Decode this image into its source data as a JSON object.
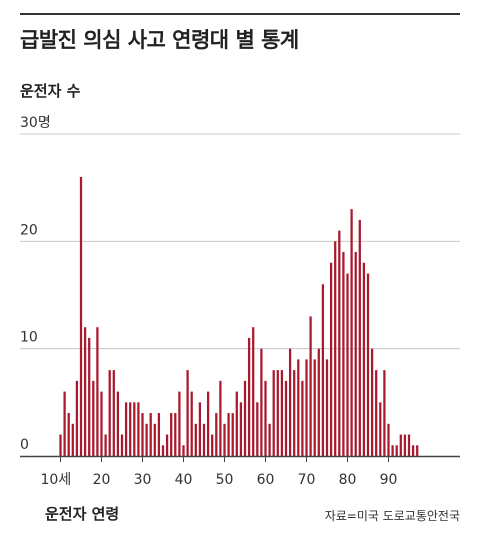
{
  "title": "급발진 의심 사고 연령대 별 통계",
  "ylabel": "운전자 수",
  "xlabel": "운전자 연령",
  "source": "자료=미국 도로교통안전국",
  "colors": {
    "bar": "#a8192e",
    "grid": "#c8c8c8",
    "axis": "#444444",
    "text": "#333333"
  },
  "chart_data": {
    "type": "bar",
    "title": "급발진 의심 사고 연령대 별 통계",
    "xlabel": "운전자 연령",
    "ylabel": "운전자 수",
    "x_tick_labels": [
      "10세",
      "20",
      "30",
      "40",
      "50",
      "60",
      "70",
      "80",
      "90"
    ],
    "x_tick_values": [
      10,
      20,
      30,
      40,
      50,
      60,
      70,
      80,
      90
    ],
    "y_tick_labels": [
      "0",
      "10",
      "20",
      "30명"
    ],
    "y_tick_values": [
      0,
      10,
      20,
      30
    ],
    "ylim": [
      0,
      30
    ],
    "grid": true,
    "categories": [
      10,
      11,
      12,
      13,
      14,
      15,
      16,
      17,
      18,
      19,
      20,
      21,
      22,
      23,
      24,
      25,
      26,
      27,
      28,
      29,
      30,
      31,
      32,
      33,
      34,
      35,
      36,
      37,
      38,
      39,
      40,
      41,
      42,
      43,
      44,
      45,
      46,
      47,
      48,
      49,
      50,
      51,
      52,
      53,
      54,
      55,
      56,
      57,
      58,
      59,
      60,
      61,
      62,
      63,
      64,
      65,
      66,
      67,
      68,
      69,
      70,
      71,
      72,
      73,
      74,
      75,
      76,
      77,
      78,
      79,
      80,
      81,
      82,
      83,
      84,
      85,
      86,
      87,
      88,
      89,
      90,
      91,
      92,
      93,
      94,
      95,
      96,
      97
    ],
    "values": [
      2,
      6,
      4,
      3,
      7,
      26,
      12,
      11,
      7,
      12,
      6,
      2,
      8,
      8,
      6,
      2,
      5,
      5,
      5,
      5,
      4,
      3,
      4,
      3,
      4,
      1,
      2,
      4,
      4,
      6,
      1,
      8,
      6,
      3,
      5,
      3,
      6,
      2,
      4,
      7,
      3,
      4,
      4,
      6,
      5,
      7,
      11,
      12,
      5,
      10,
      7,
      3,
      8,
      8,
      8,
      7,
      10,
      8,
      9,
      7,
      9,
      13,
      9,
      10,
      16,
      9,
      18,
      20,
      21,
      19,
      17,
      23,
      19,
      22,
      18,
      17,
      10,
      8,
      5,
      8,
      3,
      1,
      1,
      2,
      2,
      2,
      1,
      1
    ],
    "bar_width_units": 0.55
  }
}
